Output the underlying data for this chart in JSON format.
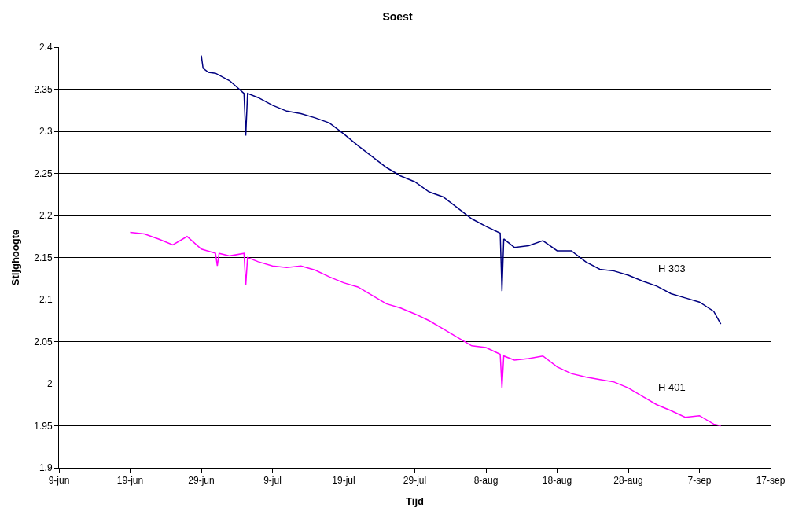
{
  "chart_data": {
    "type": "line",
    "title": "Soest",
    "xlabel": "Tijd",
    "ylabel": "Stijghoogte",
    "xlim": [
      "--06-09",
      "--09-17"
    ],
    "xticks": [
      {
        "value": "--06-09",
        "label": "9-jun"
      },
      {
        "value": "--06-19",
        "label": "19-jun"
      },
      {
        "value": "--06-29",
        "label": "29-jun"
      },
      {
        "value": "--07-09",
        "label": "9-jul"
      },
      {
        "value": "--07-19",
        "label": "19-jul"
      },
      {
        "value": "--07-29",
        "label": "29-jul"
      },
      {
        "value": "--08-08",
        "label": "8-aug"
      },
      {
        "value": "--08-18",
        "label": "18-aug"
      },
      {
        "value": "--08-28",
        "label": "28-aug"
      },
      {
        "value": "--09-07",
        "label": "7-sep"
      },
      {
        "value": "--09-17",
        "label": "17-sep"
      }
    ],
    "ylim": [
      1.9,
      2.4
    ],
    "yticks": [
      1.9,
      1.95,
      2,
      2.05,
      2.1,
      2.15,
      2.2,
      2.25,
      2.3,
      2.35,
      2.4
    ],
    "grid": "y",
    "legend": false,
    "line_style": "solid",
    "marker": "none",
    "series": [
      {
        "name": "H 303",
        "color": "#000080",
        "x": [
          "--06-29",
          "--06-29T06:00",
          "--06-30",
          "--07-01",
          "--07-03",
          "--07-05",
          "--07-05T06:00",
          "--07-05T12:00",
          "--07-07",
          "--07-09",
          "--07-11",
          "--07-13",
          "--07-15",
          "--07-17",
          "--07-19",
          "--07-21",
          "--07-23",
          "--07-25",
          "--07-27",
          "--07-29",
          "--07-31",
          "--08-02",
          "--08-04",
          "--08-06",
          "--08-08",
          "--08-10",
          "--08-10T06:00",
          "--08-10T12:00",
          "--08-12",
          "--08-14",
          "--08-16",
          "--08-18",
          "--08-20",
          "--08-22",
          "--08-24",
          "--08-26",
          "--08-28",
          "--08-30",
          "--09-01",
          "--09-03",
          "--09-05",
          "--09-07",
          "--09-09",
          "--09-10"
        ],
        "values": [
          2.39,
          2.375,
          2.37,
          2.369,
          2.36,
          2.345,
          2.295,
          2.345,
          2.34,
          2.331,
          2.324,
          2.321,
          2.316,
          2.31,
          2.297,
          2.283,
          2.27,
          2.257,
          2.247,
          2.24,
          2.228,
          2.222,
          2.209,
          2.196,
          2.187,
          2.179,
          2.11,
          2.172,
          2.162,
          2.164,
          2.17,
          2.158,
          2.158,
          2.145,
          2.136,
          2.134,
          2.129,
          2.122,
          2.116,
          2.107,
          2.102,
          2.097,
          2.086,
          2.071
        ]
      },
      {
        "name": "H 401",
        "color": "#ff00ff",
        "x": [
          "--06-19",
          "--06-21",
          "--06-23",
          "--06-25",
          "--06-27",
          "--06-29",
          "--07-01",
          "--07-01T06:00",
          "--07-01T12:00",
          "--07-03",
          "--07-05",
          "--07-05T06:00",
          "--07-05T12:00",
          "--07-07",
          "--07-09",
          "--07-11",
          "--07-13",
          "--07-15",
          "--07-17",
          "--07-19",
          "--07-21",
          "--07-23",
          "--07-25",
          "--07-27",
          "--07-29",
          "--07-31",
          "--08-02",
          "--08-04",
          "--08-06",
          "--08-08",
          "--08-10",
          "--08-10T06:00",
          "--08-10T12:00",
          "--08-12",
          "--08-14",
          "--08-16",
          "--08-18",
          "--08-20",
          "--08-22",
          "--08-24",
          "--08-26",
          "--08-28",
          "--08-30",
          "--09-01",
          "--09-03",
          "--09-05",
          "--09-07",
          "--09-09",
          "--09-10"
        ],
        "values": [
          2.18,
          2.178,
          2.172,
          2.165,
          2.175,
          2.16,
          2.155,
          2.14,
          2.155,
          2.152,
          2.155,
          2.117,
          2.15,
          2.145,
          2.14,
          2.138,
          2.14,
          2.135,
          2.127,
          2.12,
          2.115,
          2.105,
          2.095,
          2.09,
          2.083,
          2.075,
          2.065,
          2.055,
          2.045,
          2.043,
          2.035,
          1.995,
          2.033,
          2.028,
          2.03,
          2.033,
          2.02,
          2.012,
          2.008,
          2.005,
          2.002,
          1.995,
          1.985,
          1.975,
          1.968,
          1.96,
          1.962,
          1.952,
          1.95
        ]
      }
    ]
  }
}
